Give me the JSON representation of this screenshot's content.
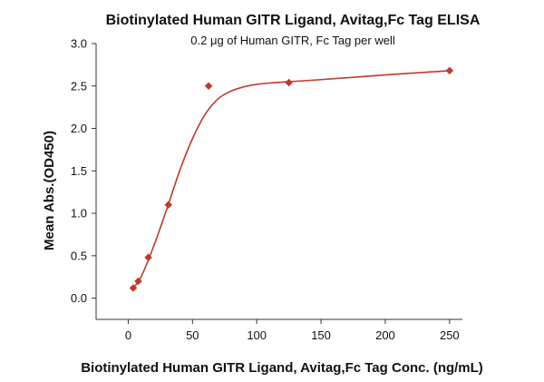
{
  "chart_data": {
    "type": "scatter",
    "title": "Biotinylated Human GITR Ligand, Avitag,Fc Tag ELISA",
    "subtitle": "0.2 μg of Human GITR, Fc Tag per well",
    "xlabel": "Biotinylated Human GITR Ligand, Avitag,Fc Tag Conc. (ng/mL)",
    "ylabel": "Mean Abs.(OD450)",
    "xlim": [
      -25,
      260
    ],
    "ylim": [
      -0.25,
      3.0
    ],
    "x_ticks": [
      0,
      50,
      100,
      150,
      200,
      250
    ],
    "y_ticks": [
      0.0,
      0.5,
      1.0,
      1.5,
      2.0,
      2.5,
      3.0
    ],
    "x_tick_labels": [
      "0",
      "50",
      "100",
      "150",
      "200",
      "250"
    ],
    "y_tick_labels": [
      "0.0",
      "0.5",
      "1.0",
      "1.5",
      "2.0",
      "2.5",
      "3.0"
    ],
    "grid": false,
    "color": "#c0392b",
    "points": [
      {
        "x": 3.9,
        "y": 0.12
      },
      {
        "x": 7.8,
        "y": 0.2
      },
      {
        "x": 15.6,
        "y": 0.48
      },
      {
        "x": 31.25,
        "y": 1.1
      },
      {
        "x": 62.5,
        "y": 2.5
      },
      {
        "x": 125,
        "y": 2.54
      },
      {
        "x": 250,
        "y": 2.68
      }
    ],
    "fit_curve": {
      "x": [
        3.9,
        10,
        20,
        30,
        40,
        50,
        60,
        70,
        80,
        90,
        100,
        110,
        125,
        150,
        200,
        250
      ],
      "y": [
        0.12,
        0.25,
        0.62,
        1.05,
        1.5,
        1.88,
        2.17,
        2.35,
        2.44,
        2.49,
        2.52,
        2.535,
        2.55,
        2.575,
        2.63,
        2.68
      ]
    }
  }
}
